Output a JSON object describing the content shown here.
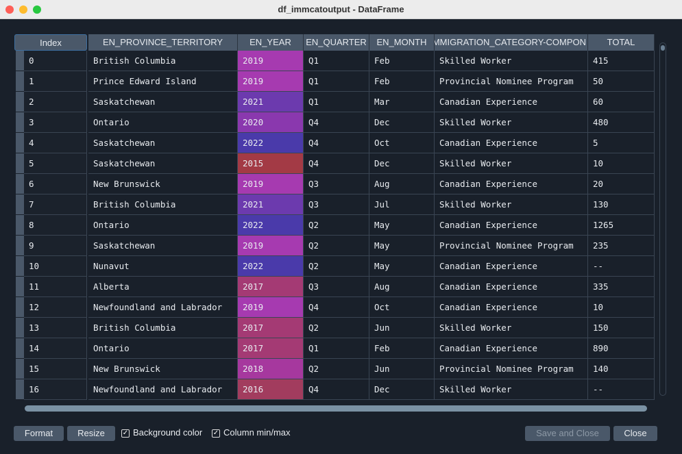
{
  "window": {
    "title": "df_immcatoutput - DataFrame"
  },
  "table": {
    "index_header": "Index",
    "columns": [
      "EN_PROVINCE_TERRITORY",
      "EN_YEAR",
      "EN_QUARTER",
      "EN_MONTH",
      "IMMIGRATION_CATEGORY-COMPON",
      "TOTAL"
    ],
    "rows": [
      [
        "0",
        "British Columbia",
        "2019",
        "Q1",
        "Feb",
        "Skilled Worker",
        "415"
      ],
      [
        "1",
        "Prince Edward Island",
        "2019",
        "Q1",
        "Feb",
        "Provincial Nominee Program",
        "50"
      ],
      [
        "2",
        "Saskatchewan",
        "2021",
        "Q1",
        "Mar",
        "Canadian Experience",
        "60"
      ],
      [
        "3",
        "Ontario",
        "2020",
        "Q4",
        "Dec",
        "Skilled Worker",
        "480"
      ],
      [
        "4",
        "Saskatchewan",
        "2022",
        "Q4",
        "Oct",
        "Canadian Experience",
        "5"
      ],
      [
        "5",
        "Saskatchewan",
        "2015",
        "Q4",
        "Dec",
        "Skilled Worker",
        "10"
      ],
      [
        "6",
        "New Brunswick",
        "2019",
        "Q3",
        "Aug",
        "Canadian Experience",
        "20"
      ],
      [
        "7",
        "British Columbia",
        "2021",
        "Q3",
        "Jul",
        "Skilled Worker",
        "130"
      ],
      [
        "8",
        "Ontario",
        "2022",
        "Q2",
        "May",
        "Canadian Experience",
        "1265"
      ],
      [
        "9",
        "Saskatchewan",
        "2019",
        "Q2",
        "May",
        "Provincial Nominee Program",
        "235"
      ],
      [
        "10",
        "Nunavut",
        "2022",
        "Q2",
        "May",
        "Canadian Experience",
        "--"
      ],
      [
        "11",
        "Alberta",
        "2017",
        "Q3",
        "Aug",
        "Canadian Experience",
        "335"
      ],
      [
        "12",
        "Newfoundland and Labrador",
        "2019",
        "Q4",
        "Oct",
        "Canadian Experience",
        "10"
      ],
      [
        "13",
        "British Columbia",
        "2017",
        "Q2",
        "Jun",
        "Skilled Worker",
        "150"
      ],
      [
        "14",
        "Ontario",
        "2017",
        "Q1",
        "Feb",
        "Canadian Experience",
        "890"
      ],
      [
        "15",
        "New Brunswick",
        "2018",
        "Q2",
        "Jun",
        "Provincial Nominee Program",
        "140"
      ],
      [
        "16",
        "Newfoundland and Labrador",
        "2016",
        "Q4",
        "Dec",
        "Skilled Worker",
        "--"
      ]
    ]
  },
  "year_colors": {
    "2015": "#a33a45",
    "2016": "#a23c5e",
    "2017": "#a43a74",
    "2018": "#a6389e",
    "2019": "#a63ab0",
    "2020": "#8a38ae",
    "2021": "#6c3aae",
    "2022": "#4a3aaa"
  },
  "footer": {
    "format": "Format",
    "resize": "Resize",
    "background_color": "Background color",
    "column_minmax": "Column min/max",
    "save_close": "Save and Close",
    "close": "Close"
  }
}
